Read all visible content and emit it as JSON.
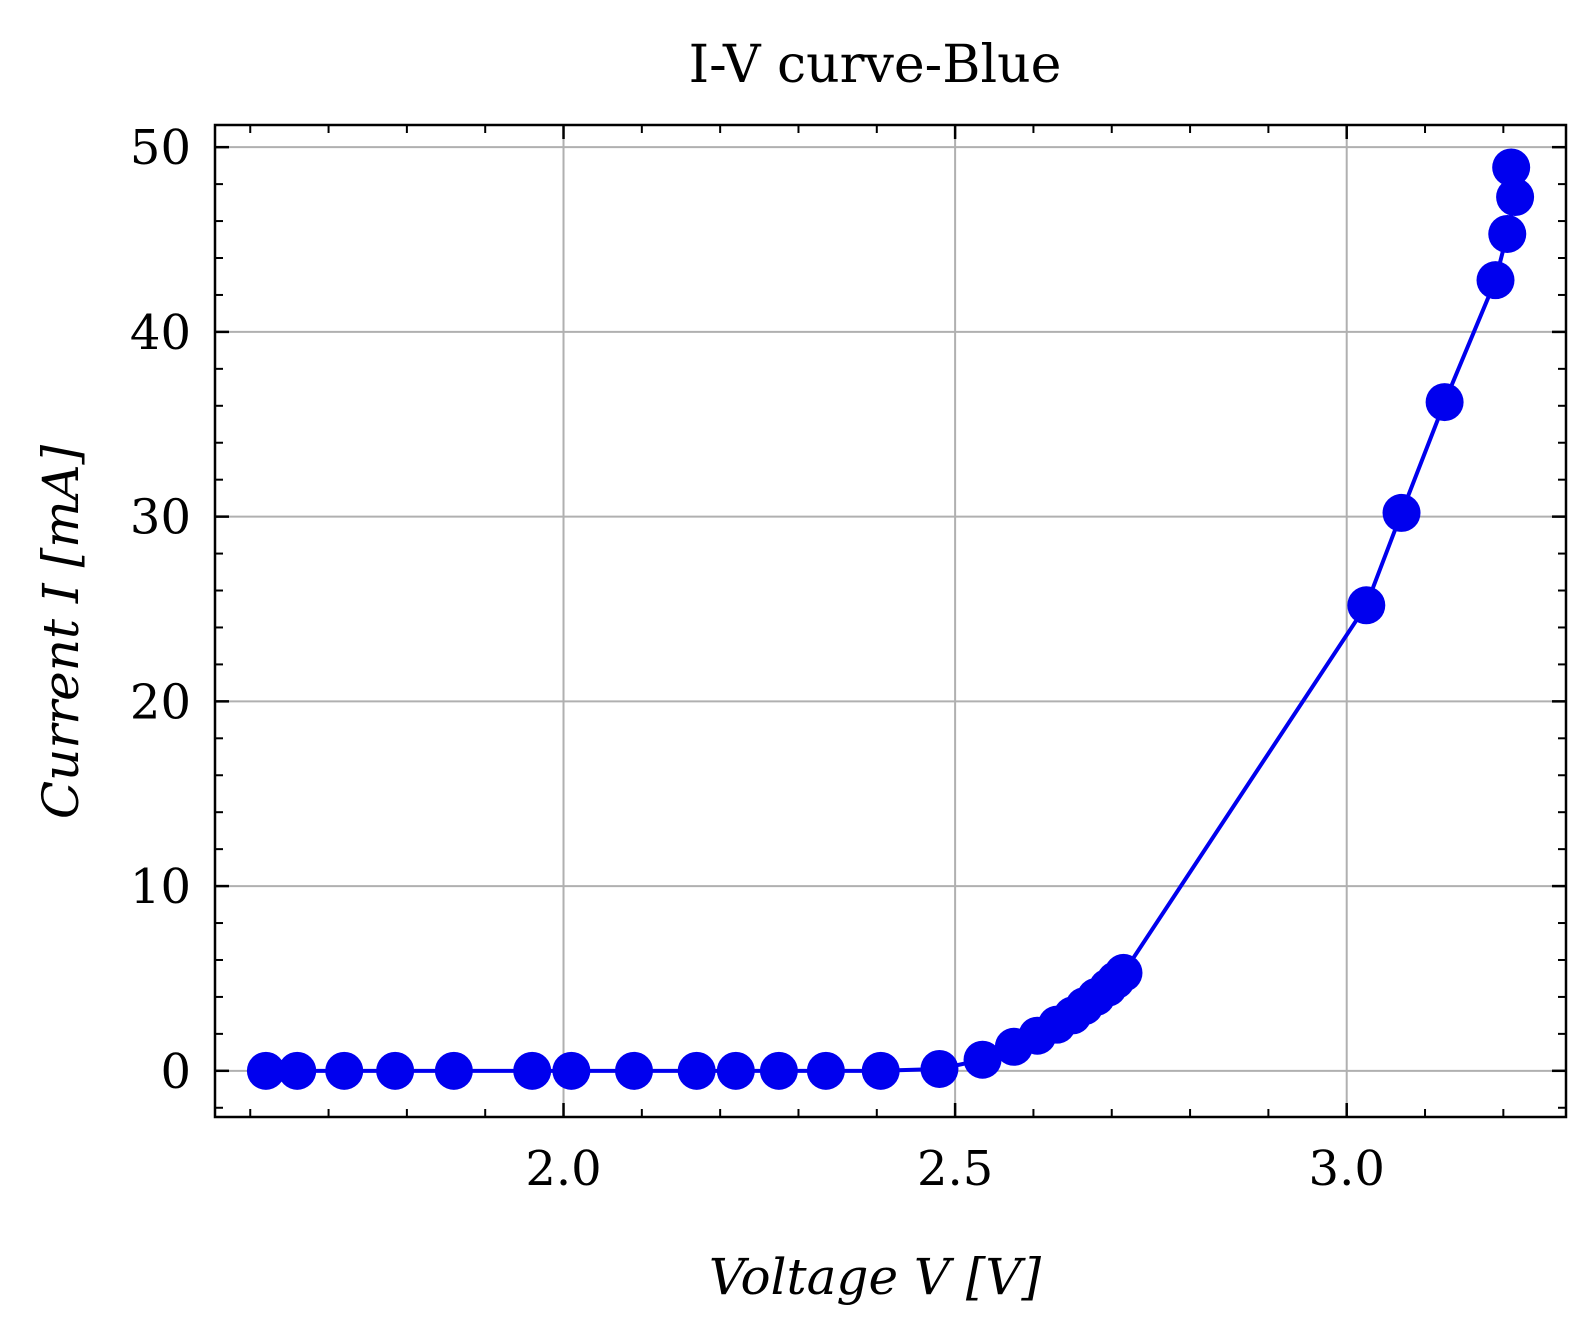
{
  "chart_data": {
    "type": "line",
    "title": "I-V curve-Blue",
    "xlabel": "Voltage V [V]",
    "ylabel": "Current I [mA]",
    "xlim": [
      1.555,
      3.28
    ],
    "ylim": [
      -2.5,
      51.2
    ],
    "xticks": [
      2.0,
      2.5,
      3.0
    ],
    "xtick_labels": [
      "2.0",
      "2.5",
      "3.0"
    ],
    "yticks": [
      0,
      10,
      20,
      30,
      40,
      50
    ],
    "ytick_labels": [
      "0",
      "10",
      "20",
      "30",
      "40",
      "50"
    ],
    "grid": true,
    "series": [
      {
        "color": "#0000ee",
        "marker": "circle",
        "x": [
          1.62,
          1.66,
          1.72,
          1.785,
          1.86,
          1.96,
          2.01,
          2.09,
          2.17,
          2.22,
          2.275,
          2.335,
          2.405,
          2.48,
          2.535,
          2.575,
          2.605,
          2.63,
          2.65,
          2.665,
          2.68,
          2.695,
          2.705,
          2.715,
          3.025,
          3.07,
          3.125,
          3.19,
          3.205,
          3.215,
          3.21
        ],
        "y": [
          0,
          0,
          0,
          0,
          0,
          0,
          0,
          0,
          0,
          0,
          0,
          0,
          0,
          0.1,
          0.6,
          1.3,
          1.9,
          2.5,
          3.0,
          3.5,
          4.0,
          4.5,
          4.9,
          5.3,
          25.2,
          30.2,
          36.2,
          42.8,
          45.3,
          47.3,
          48.9
        ]
      }
    ]
  }
}
